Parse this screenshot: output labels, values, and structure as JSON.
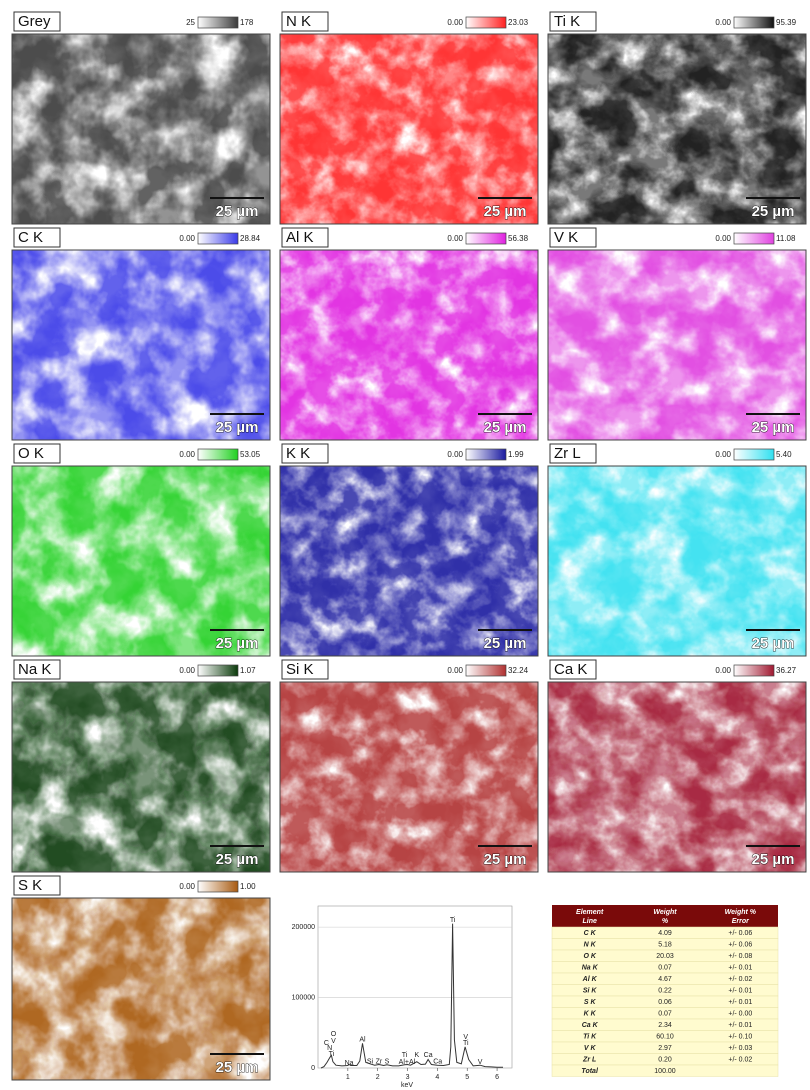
{
  "maps": [
    {
      "label": "Grey",
      "min": "25",
      "max": "178",
      "color": "#3a3a3a",
      "scale_bar": "25 µm"
    },
    {
      "label": "N K",
      "min": "0.00",
      "max": "23.03",
      "color": "#ff2020",
      "scale_bar": "25 µm"
    },
    {
      "label": "Ti K",
      "min": "0.00",
      "max": "95.39",
      "color": "#101010",
      "scale_bar": "25 µm"
    },
    {
      "label": "C K",
      "min": "0.00",
      "max": "28.84",
      "color": "#3a3ae8",
      "scale_bar": "25 µm"
    },
    {
      "label": "Al K",
      "min": "0.00",
      "max": "56.38",
      "color": "#e020e0",
      "scale_bar": "25 µm"
    },
    {
      "label": "V K",
      "min": "0.00",
      "max": "11.08",
      "color": "#e040e0",
      "scale_bar": "25 µm"
    },
    {
      "label": "O K",
      "min": "0.00",
      "max": "53.05",
      "color": "#20d020",
      "scale_bar": "25 µm"
    },
    {
      "label": "K K",
      "min": "0.00",
      "max": "1.99",
      "color": "#1a1aa0",
      "scale_bar": "25 µm"
    },
    {
      "label": "Zr L",
      "min": "0.00",
      "max": "5.40",
      "color": "#30e0f0",
      "scale_bar": "25 µm"
    },
    {
      "label": "Na K",
      "min": "0.00",
      "max": "1.07",
      "color": "#0a3a0a",
      "scale_bar": "25 µm"
    },
    {
      "label": "Si K",
      "min": "0.00",
      "max": "32.24",
      "color": "#b03030",
      "scale_bar": "25 µm"
    },
    {
      "label": "Ca K",
      "min": "0.00",
      "max": "36.27",
      "color": "#a01830",
      "scale_bar": "25 µm"
    },
    {
      "label": "S K",
      "min": "0.00",
      "max": "1.00",
      "color": "#a85a10",
      "scale_bar": "25 µm"
    }
  ],
  "chart_data": {
    "type": "line",
    "x_label": "keV",
    "x": [
      0.1,
      0.2,
      0.3,
      0.4,
      0.45,
      0.5,
      0.6,
      0.8,
      1.0,
      1.04,
      1.1,
      1.3,
      1.4,
      1.49,
      1.6,
      1.74,
      1.9,
      2.04,
      2.2,
      2.31,
      2.5,
      2.7,
      2.9,
      3.0,
      3.1,
      3.31,
      3.45,
      3.6,
      3.69,
      3.8,
      4.0,
      4.2,
      4.4,
      4.45,
      4.51,
      4.57,
      4.65,
      4.8,
      4.93,
      5.05,
      5.2,
      5.43,
      5.6,
      5.8,
      6.0,
      6.2
    ],
    "series": [
      {
        "color": "#333333",
        "values": [
          0,
          2000,
          8000,
          15000,
          18000,
          9000,
          4000,
          3000,
          3500,
          5000,
          3500,
          3500,
          10000,
          35000,
          8000,
          6000,
          4000,
          5000,
          3500,
          4500,
          3000,
          3000,
          4500,
          5000,
          4000,
          9000,
          5000,
          5500,
          12000,
          5000,
          4000,
          3500,
          5000,
          30000,
          205000,
          40000,
          8000,
          6000,
          30000,
          12000,
          3000,
          4000,
          2000,
          1500,
          1200,
          1000
        ]
      }
    ],
    "xlim": [
      0,
      6.5
    ],
    "xticks": [
      1,
      2,
      3,
      4,
      5,
      6
    ],
    "ylim": [
      0,
      230000
    ],
    "yticks": [
      0,
      100000,
      200000
    ],
    "grid": true,
    "annotations": [
      {
        "text": "C",
        "x": 0.28,
        "y": 35000
      },
      {
        "text": "O",
        "x": 0.52,
        "y": 48000
      },
      {
        "text": "V",
        "x": 0.52,
        "y": 38000
      },
      {
        "text": "N",
        "x": 0.39,
        "y": 28000
      },
      {
        "text": "Ti",
        "x": 0.45,
        "y": 20000
      },
      {
        "text": "Na",
        "x": 1.04,
        "y": 7000
      },
      {
        "text": "Al",
        "x": 1.49,
        "y": 40000
      },
      {
        "text": "Si",
        "x": 1.74,
        "y": 9000
      },
      {
        "text": "Zr",
        "x": 2.04,
        "y": 9000
      },
      {
        "text": "S",
        "x": 2.31,
        "y": 9000
      },
      {
        "text": "Ti",
        "x": 2.9,
        "y": 18000
      },
      {
        "text": "Al+Al",
        "x": 2.98,
        "y": 8000
      },
      {
        "text": "K",
        "x": 3.31,
        "y": 18000
      },
      {
        "text": "Ca",
        "x": 3.69,
        "y": 18000
      },
      {
        "text": "Ca",
        "x": 4.01,
        "y": 9000
      },
      {
        "text": "Ti",
        "x": 4.51,
        "y": 210000
      },
      {
        "text": "V",
        "x": 4.95,
        "y": 44000
      },
      {
        "text": "Ti",
        "x": 4.95,
        "y": 35000
      },
      {
        "text": "V",
        "x": 5.43,
        "y": 8000
      }
    ]
  },
  "table": {
    "header": [
      "Element Line",
      "Weight %",
      "Weight % Error"
    ],
    "rows": [
      [
        "C K",
        "4.09",
        "+/- 0.06"
      ],
      [
        "N K",
        "5.18",
        "+/- 0.06"
      ],
      [
        "O K",
        "20.03",
        "+/- 0.08"
      ],
      [
        "Na K",
        "0.07",
        "+/- 0.01"
      ],
      [
        "Al K",
        "4.67",
        "+/- 0.02"
      ],
      [
        "Si K",
        "0.22",
        "+/- 0.01"
      ],
      [
        "S K",
        "0.06",
        "+/- 0.01"
      ],
      [
        "K K",
        "0.07",
        "+/- 0.00"
      ],
      [
        "Ca K",
        "2.34",
        "+/- 0.01"
      ],
      [
        "Ti K",
        "60.10",
        "+/- 0.10"
      ],
      [
        "V K",
        "2.97",
        "+/- 0.03"
      ],
      [
        "Zr L",
        "0.20",
        "+/- 0.02"
      ],
      [
        "Total",
        "100.00"
      ]
    ]
  }
}
